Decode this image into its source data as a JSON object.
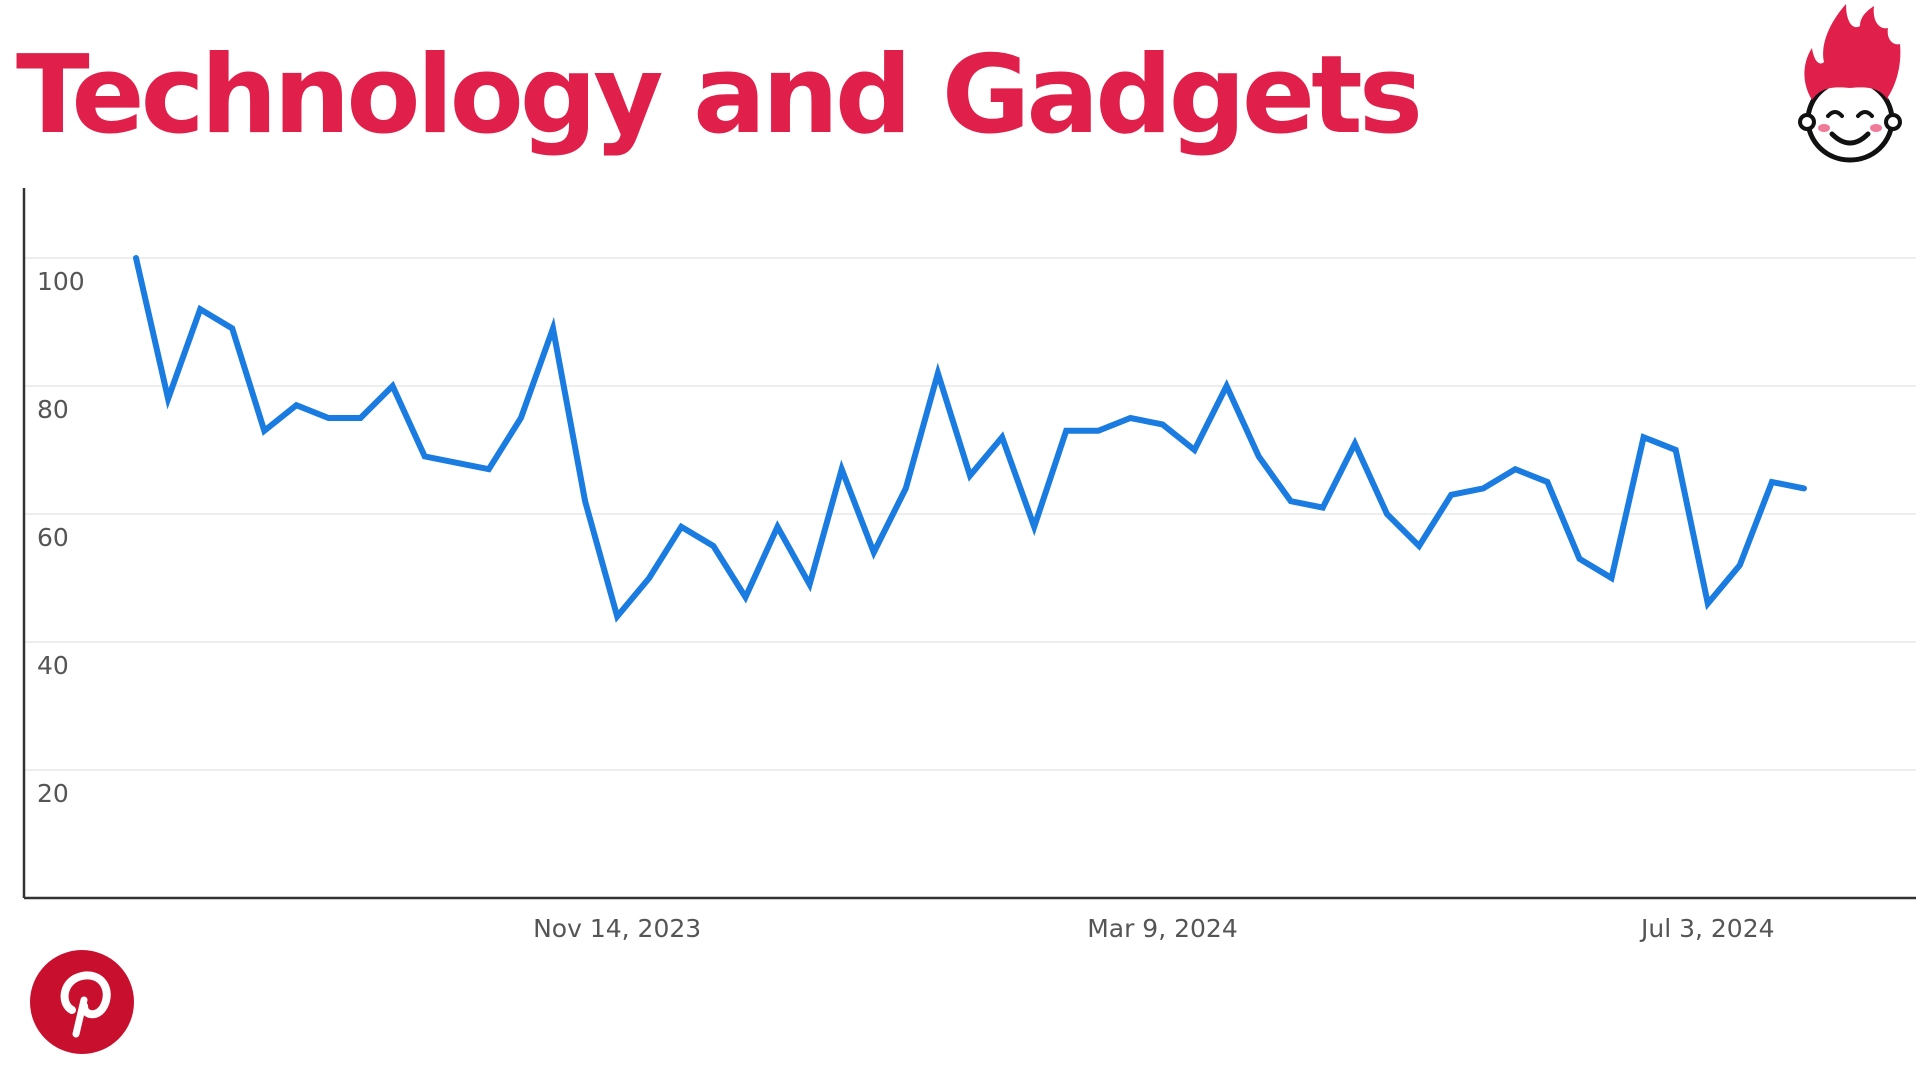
{
  "header": {
    "title": "Technology and Gadgets"
  },
  "logos": {
    "top_right": "mascot-flame-hair-face-icon",
    "bottom_left": "pinterest-logo-icon"
  },
  "colors": {
    "title": "#e0204b",
    "line": "#1a7be0",
    "pinterest": "#c8102e",
    "mascot_hair": "#e0204b"
  },
  "chart_data": {
    "type": "line",
    "title": "",
    "xlabel": "",
    "ylabel": "",
    "ylim": [
      0,
      110
    ],
    "y_ticks": [
      20,
      40,
      60,
      80,
      100
    ],
    "x_ticks": [
      "Nov 14, 2023",
      "Mar 9, 2024",
      "Jul 3, 2024"
    ],
    "x_tick_index": [
      15,
      32,
      49
    ],
    "grid": true,
    "legend": "none",
    "series": [
      {
        "values": [
          100,
          78,
          92,
          89,
          73,
          77,
          75,
          75,
          80,
          69,
          68,
          67,
          75,
          89,
          62,
          44,
          50,
          58,
          55,
          47,
          58,
          49,
          67,
          54,
          64,
          82,
          66,
          72,
          58,
          73,
          73,
          75,
          74,
          70,
          80,
          69,
          62,
          61,
          71,
          60,
          55,
          63,
          64,
          67,
          65,
          53,
          50,
          72,
          70,
          46,
          52,
          65,
          64
        ]
      }
    ]
  }
}
